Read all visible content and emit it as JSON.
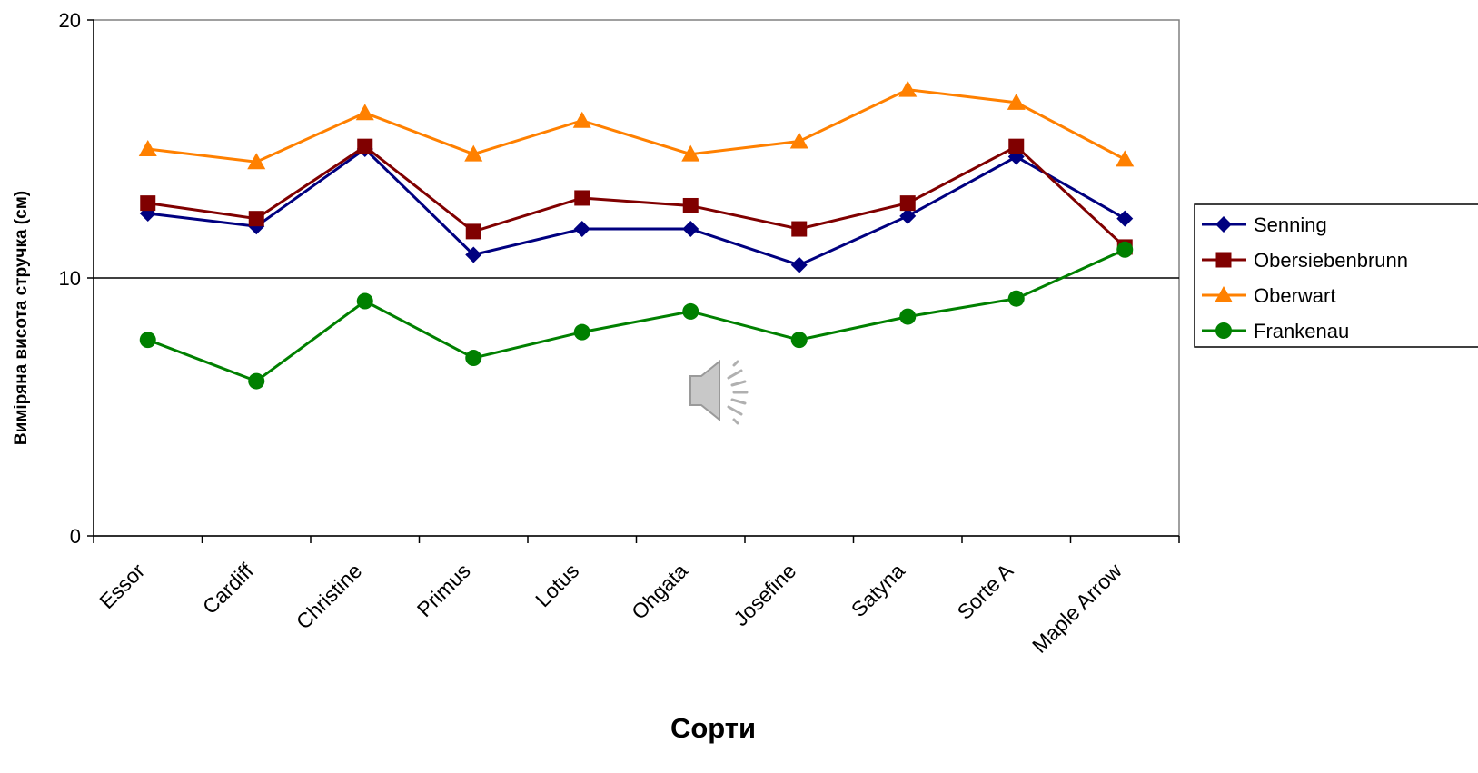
{
  "chart_data": {
    "type": "line",
    "categories": [
      "Essor",
      "Cardiff",
      "Christine",
      "Primus",
      "Lotus",
      "Ohgata",
      "Josefine",
      "Satyna",
      "Sorte A",
      "Maple Arrow"
    ],
    "series": [
      {
        "name": "Senning",
        "color": "#000080",
        "marker": "diamond",
        "values": [
          12.5,
          12.0,
          15.0,
          10.9,
          11.9,
          11.9,
          10.5,
          12.4,
          14.7,
          12.3
        ]
      },
      {
        "name": "Obersiebenbrunn",
        "color": "#800000",
        "marker": "square",
        "values": [
          12.9,
          12.3,
          15.1,
          11.8,
          13.1,
          12.8,
          11.9,
          12.9,
          15.1,
          11.2
        ]
      },
      {
        "name": "Oberwart",
        "color": "#FF8000",
        "marker": "triangle",
        "values": [
          15.0,
          14.5,
          16.4,
          14.8,
          16.1,
          14.8,
          15.3,
          17.3,
          16.8,
          14.6
        ]
      },
      {
        "name": "Frankenau",
        "color": "#008000",
        "marker": "circle",
        "values": [
          7.6,
          6.0,
          9.1,
          6.9,
          7.9,
          8.7,
          7.6,
          8.5,
          9.2,
          11.1
        ]
      }
    ],
    "xlabel": "Сорти",
    "ylabel": "Виміряна висота стручка (см)",
    "ylim": [
      0,
      20
    ],
    "yticks": [
      "0",
      "10",
      "20"
    ],
    "gridlines": [
      10
    ],
    "legend_position": "right",
    "speaker_icon": "speaker-audio-icon"
  }
}
